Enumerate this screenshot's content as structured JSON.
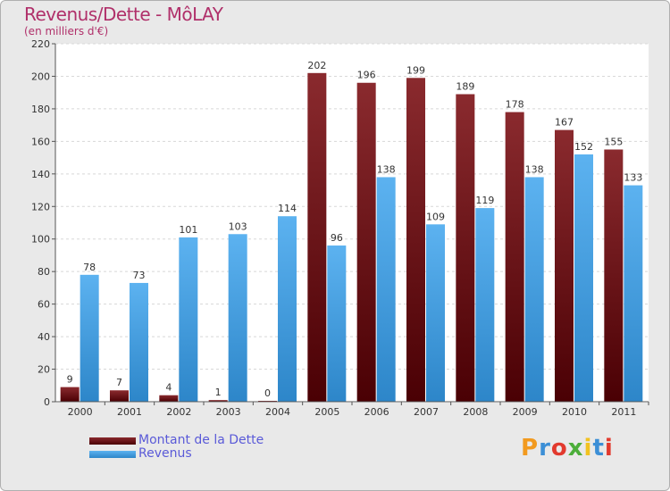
{
  "header": {
    "title": "Revenus/Dette - MôLAY",
    "subtitle": "(en milliers d'€)"
  },
  "chart_data": {
    "type": "bar",
    "categories": [
      "2000",
      "2001",
      "2002",
      "2003",
      "2004",
      "2005",
      "2006",
      "2007",
      "2008",
      "2009",
      "2010",
      "2011"
    ],
    "series": [
      {
        "name": "Montant de la Dette",
        "color": "#7a1418",
        "values": [
          9,
          7,
          4,
          1,
          0,
          202,
          196,
          199,
          189,
          178,
          167,
          155
        ]
      },
      {
        "name": "Revenus",
        "color": "#4aa3e6",
        "values": [
          78,
          73,
          101,
          103,
          114,
          96,
          138,
          109,
          119,
          138,
          152,
          133
        ]
      }
    ],
    "ylim": [
      0,
      220
    ],
    "yticks": [
      0,
      20,
      40,
      60,
      80,
      100,
      120,
      140,
      160,
      180,
      200,
      220
    ],
    "grid": true,
    "legend_position": "bottom-left"
  },
  "legend": {
    "items": [
      {
        "label": "Montant de la Dette",
        "color": "#7a1418"
      },
      {
        "label": "Revenus",
        "color": "#4aa3e6"
      }
    ]
  },
  "logo": {
    "letters": [
      "P",
      "r",
      "o",
      "x",
      "i",
      "t",
      "i"
    ],
    "colors": [
      "#f29a1f",
      "#3c8fd6",
      "#e23a2e",
      "#4cae3a",
      "#f2c21f",
      "#3c8fd6",
      "#e23a2e"
    ]
  }
}
